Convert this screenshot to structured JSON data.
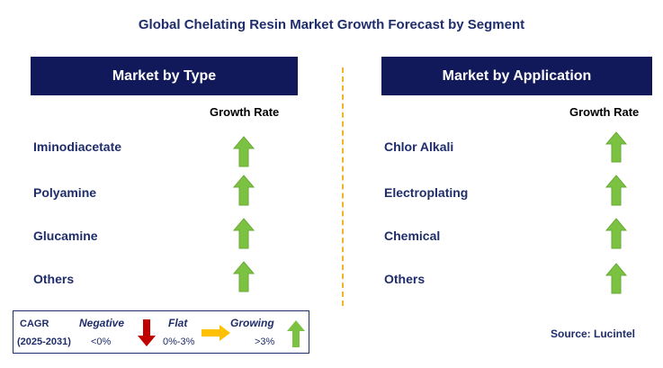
{
  "title": "Global Chelating Resin Market Growth Forecast by Segment",
  "left_panel": {
    "header": "Market by Type",
    "column_header": "Growth Rate",
    "rows": [
      {
        "label": "Iminodiacetate",
        "trend": "growing"
      },
      {
        "label": "Polyamine",
        "trend": "growing"
      },
      {
        "label": "Glucamine",
        "trend": "growing"
      },
      {
        "label": "Others",
        "trend": "growing"
      }
    ]
  },
  "right_panel": {
    "header": "Market by Application",
    "column_header": "Growth Rate",
    "rows": [
      {
        "label": "Chlor Alkali",
        "trend": "growing"
      },
      {
        "label": "Electroplating",
        "trend": "growing"
      },
      {
        "label": "Chemical",
        "trend": "growing"
      },
      {
        "label": "Others",
        "trend": "growing"
      }
    ]
  },
  "legend": {
    "cagr_label": "CAGR",
    "period": "(2025-2031)",
    "negative": {
      "label": "Negative",
      "range": "<0%",
      "icon": "arrow-down-icon",
      "color": "#c00000"
    },
    "flat": {
      "label": "Flat",
      "range": "0%-3%",
      "icon": "arrow-right-icon",
      "color": "#ffc000"
    },
    "growing": {
      "label": "Growing",
      "range": ">3%",
      "icon": "arrow-up-icon",
      "color": "#7cc242"
    }
  },
  "source": "Source: Lucintel",
  "colors": {
    "header_bg": "#12195a",
    "title_text": "#1f2d6b",
    "divider": "#f0b429",
    "up_arrow": "#7cc242"
  }
}
